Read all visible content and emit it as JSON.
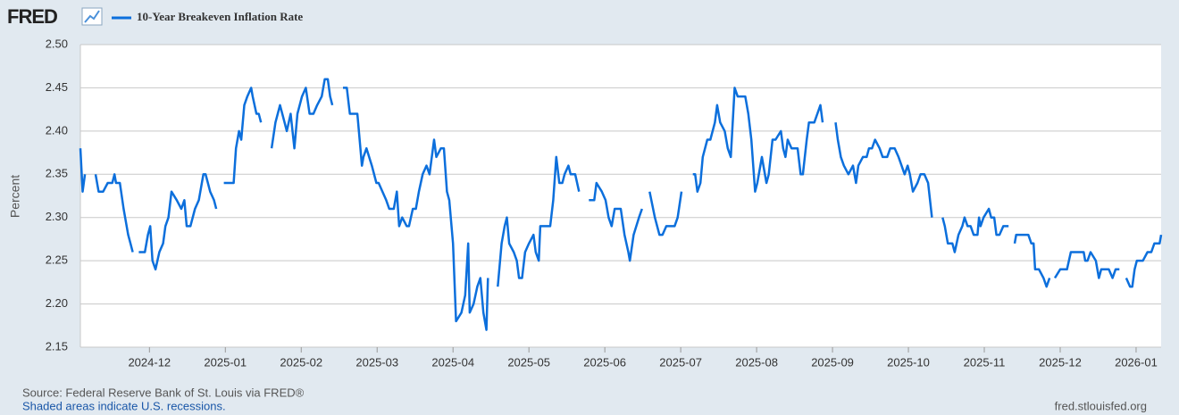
{
  "chart_data": {
    "type": "line",
    "brand": "FRED",
    "ylabel": "Percent",
    "source": "Source: Federal Reserve Bank of St. Louis via FRED®",
    "note": "Shaded areas indicate U.S. recessions.",
    "site": "fred.stlouisfed.org",
    "grid": true,
    "xlim": [
      0.09,
      14.33
    ],
    "xticks": [
      {
        "value": 1,
        "label": "2024-12"
      },
      {
        "value": 2,
        "label": "2025-01"
      },
      {
        "value": 3,
        "label": "2025-02"
      },
      {
        "value": 4,
        "label": "2025-03"
      },
      {
        "value": 5,
        "label": "2025-04"
      },
      {
        "value": 6,
        "label": "2025-05"
      },
      {
        "value": 7,
        "label": "2025-06"
      },
      {
        "value": 8,
        "label": "2025-07"
      },
      {
        "value": 9,
        "label": "2025-08"
      },
      {
        "value": 10,
        "label": "2025-09"
      },
      {
        "value": 11,
        "label": "2025-10"
      },
      {
        "value": 12,
        "label": "2025-11"
      },
      {
        "value": 13,
        "label": "2025-12"
      },
      {
        "value": 14,
        "label": "2026-01"
      }
    ],
    "ylim": [
      2.15,
      2.5
    ],
    "yticks": [
      2.15,
      {
        "value": 2.2,
        "label": "2.20"
      },
      2.25,
      {
        "value": 2.3,
        "label": "2.30"
      },
      2.35,
      {
        "value": 2.4,
        "label": "2.40"
      },
      2.45,
      {
        "value": 2.5,
        "label": "2.50"
      }
    ],
    "x": [
      0.09,
      0.12,
      0.15,
      null,
      0.29,
      0.33,
      0.39,
      0.45,
      0.51,
      0.54,
      0.56,
      0.61,
      0.66,
      0.72,
      0.75,
      0.78,
      null,
      0.86,
      0.94,
      0.98,
      1.01,
      1.04,
      1.08,
      1.13,
      1.18,
      1.21,
      1.25,
      1.29,
      1.36,
      1.42,
      1.46,
      1.49,
      1.54,
      1.6,
      1.65,
      1.71,
      1.74,
      1.8,
      1.85,
      1.88,
      null,
      1.98,
      2.07,
      2.11,
      2.14,
      2.18,
      2.21,
      2.25,
      2.29,
      2.34,
      2.36,
      2.41,
      2.44,
      2.47,
      null,
      2.61,
      2.66,
      2.72,
      2.78,
      2.81,
      2.86,
      2.91,
      2.95,
      3.01,
      3.06,
      3.11,
      3.16,
      3.21,
      3.27,
      3.31,
      3.35,
      3.38,
      3.41,
      null,
      3.55,
      3.6,
      3.64,
      3.69,
      3.74,
      3.78,
      3.8,
      3.82,
      3.86,
      3.93,
      3.99,
      4.02,
      4.07,
      4.12,
      4.16,
      4.22,
      4.26,
      4.29,
      4.33,
      4.39,
      4.42,
      4.47,
      4.51,
      4.55,
      4.6,
      4.65,
      4.69,
      4.75,
      4.78,
      4.84,
      4.88,
      4.92,
      4.95,
      5.0,
      5.04,
      5.11,
      5.16,
      5.2,
      5.22,
      5.27,
      5.32,
      5.36,
      5.4,
      5.44,
      5.46,
      null,
      5.59,
      5.64,
      5.68,
      5.71,
      5.74,
      5.8,
      5.84,
      5.87,
      5.91,
      5.95,
      6.0,
      6.06,
      6.09,
      6.13,
      6.15,
      6.28,
      6.32,
      6.36,
      6.4,
      6.44,
      6.47,
      6.52,
      6.55,
      6.61,
      6.66,
      null,
      6.79,
      6.86,
      6.89,
      6.96,
      7.01,
      7.05,
      7.09,
      7.13,
      7.21,
      7.26,
      7.31,
      7.33,
      7.38,
      7.45,
      7.49,
      null,
      7.59,
      7.66,
      7.72,
      7.76,
      7.81,
      7.92,
      7.96,
      8.01,
      null,
      8.16,
      8.19,
      8.22,
      8.26,
      8.29,
      8.35,
      8.39,
      8.45,
      8.48,
      8.52,
      8.58,
      8.62,
      8.66,
      8.71,
      8.75,
      8.85,
      8.89,
      8.93,
      8.98,
      9.01,
      9.07,
      9.13,
      9.16,
      9.21,
      9.25,
      9.32,
      9.35,
      9.38,
      9.41,
      9.46,
      9.54,
      9.58,
      9.61,
      9.66,
      9.69,
      9.76,
      9.8,
      9.84,
      9.87,
      null,
      10.04,
      10.07,
      10.11,
      10.15,
      10.21,
      10.27,
      10.31,
      10.34,
      10.4,
      10.45,
      10.48,
      10.52,
      10.56,
      10.62,
      10.66,
      10.72,
      10.76,
      10.82,
      10.87,
      10.91,
      10.95,
      10.99,
      11.02,
      11.06,
      11.12,
      11.16,
      11.21,
      11.26,
      11.31,
      null,
      11.45,
      11.48,
      11.52,
      11.58,
      11.61,
      11.66,
      11.71,
      11.74,
      11.78,
      11.82,
      11.86,
      11.91,
      11.93,
      11.95,
      11.99,
      12.06,
      12.09,
      12.13,
      12.16,
      12.2,
      12.25,
      12.32,
      null,
      12.4,
      12.42,
      12.54,
      12.58,
      12.62,
      12.65,
      12.67,
      12.72,
      12.78,
      12.82,
      12.86,
      null,
      12.93,
      13.0,
      13.09,
      13.14,
      13.27,
      13.31,
      13.33,
      13.36,
      13.4,
      13.47,
      13.51,
      13.54,
      13.64,
      13.69,
      13.73,
      13.78,
      null,
      13.87,
      13.92,
      13.95,
      13.98,
      14.01,
      14.09,
      14.15,
      14.2,
      14.24,
      14.28,
      14.31,
      14.33
    ],
    "series": [
      {
        "name": "10-Year Breakeven Inflation Rate",
        "color": "#0c6fdc",
        "values": [
          2.38,
          2.33,
          2.35,
          null,
          2.35,
          2.33,
          2.33,
          2.34,
          2.34,
          2.35,
          2.34,
          2.34,
          2.31,
          2.28,
          2.27,
          2.26,
          null,
          2.26,
          2.26,
          2.28,
          2.29,
          2.25,
          2.24,
          2.26,
          2.27,
          2.29,
          2.3,
          2.33,
          2.32,
          2.31,
          2.32,
          2.29,
          2.29,
          2.31,
          2.32,
          2.35,
          2.35,
          2.33,
          2.32,
          2.31,
          null,
          2.34,
          2.34,
          2.34,
          2.38,
          2.4,
          2.39,
          2.43,
          2.44,
          2.45,
          2.44,
          2.42,
          2.42,
          2.41,
          null,
          2.38,
          2.41,
          2.43,
          2.41,
          2.4,
          2.42,
          2.38,
          2.42,
          2.44,
          2.45,
          2.42,
          2.42,
          2.43,
          2.44,
          2.46,
          2.46,
          2.44,
          2.43,
          null,
          2.45,
          2.45,
          2.42,
          2.42,
          2.42,
          2.38,
          2.36,
          2.37,
          2.38,
          2.36,
          2.34,
          2.34,
          2.33,
          2.32,
          2.31,
          2.31,
          2.33,
          2.29,
          2.3,
          2.29,
          2.29,
          2.31,
          2.31,
          2.33,
          2.35,
          2.36,
          2.35,
          2.39,
          2.37,
          2.38,
          2.38,
          2.33,
          2.32,
          2.27,
          2.18,
          2.19,
          2.21,
          2.27,
          2.19,
          2.2,
          2.22,
          2.23,
          2.19,
          2.17,
          2.23,
          null,
          2.22,
          2.27,
          2.29,
          2.3,
          2.27,
          2.26,
          2.25,
          2.23,
          2.23,
          2.26,
          2.27,
          2.28,
          2.26,
          2.25,
          2.29,
          2.29,
          2.32,
          2.37,
          2.34,
          2.34,
          2.35,
          2.36,
          2.35,
          2.35,
          2.33,
          null,
          2.32,
          2.32,
          2.34,
          2.33,
          2.32,
          2.3,
          2.29,
          2.31,
          2.31,
          2.28,
          2.26,
          2.25,
          2.28,
          2.3,
          2.31,
          null,
          2.33,
          2.3,
          2.28,
          2.28,
          2.29,
          2.29,
          2.3,
          2.33,
          null,
          2.35,
          2.35,
          2.33,
          2.34,
          2.37,
          2.39,
          2.39,
          2.41,
          2.43,
          2.41,
          2.4,
          2.38,
          2.37,
          2.45,
          2.44,
          2.44,
          2.42,
          2.39,
          2.33,
          2.34,
          2.37,
          2.34,
          2.35,
          2.39,
          2.39,
          2.4,
          2.38,
          2.37,
          2.39,
          2.38,
          2.38,
          2.35,
          2.35,
          2.39,
          2.41,
          2.41,
          2.42,
          2.43,
          2.41,
          null,
          2.41,
          2.39,
          2.37,
          2.36,
          2.35,
          2.36,
          2.34,
          2.36,
          2.37,
          2.37,
          2.38,
          2.38,
          2.39,
          2.38,
          2.37,
          2.37,
          2.38,
          2.38,
          2.37,
          2.36,
          2.35,
          2.36,
          2.35,
          2.33,
          2.34,
          2.35,
          2.35,
          2.34,
          2.3,
          null,
          2.3,
          2.29,
          2.27,
          2.27,
          2.26,
          2.28,
          2.29,
          2.3,
          2.29,
          2.29,
          2.28,
          2.28,
          2.3,
          2.29,
          2.3,
          2.31,
          2.3,
          2.3,
          2.28,
          2.28,
          2.29,
          2.29,
          null,
          2.27,
          2.28,
          2.28,
          2.28,
          2.27,
          2.27,
          2.24,
          2.24,
          2.23,
          2.22,
          2.23,
          null,
          2.23,
          2.24,
          2.24,
          2.26,
          2.26,
          2.26,
          2.25,
          2.25,
          2.26,
          2.25,
          2.23,
          2.24,
          2.24,
          2.23,
          2.24,
          2.24,
          null,
          2.23,
          2.22,
          2.22,
          2.24,
          2.25,
          2.25,
          2.26,
          2.26,
          2.27,
          2.27,
          2.27,
          2.28
        ]
      }
    ]
  }
}
